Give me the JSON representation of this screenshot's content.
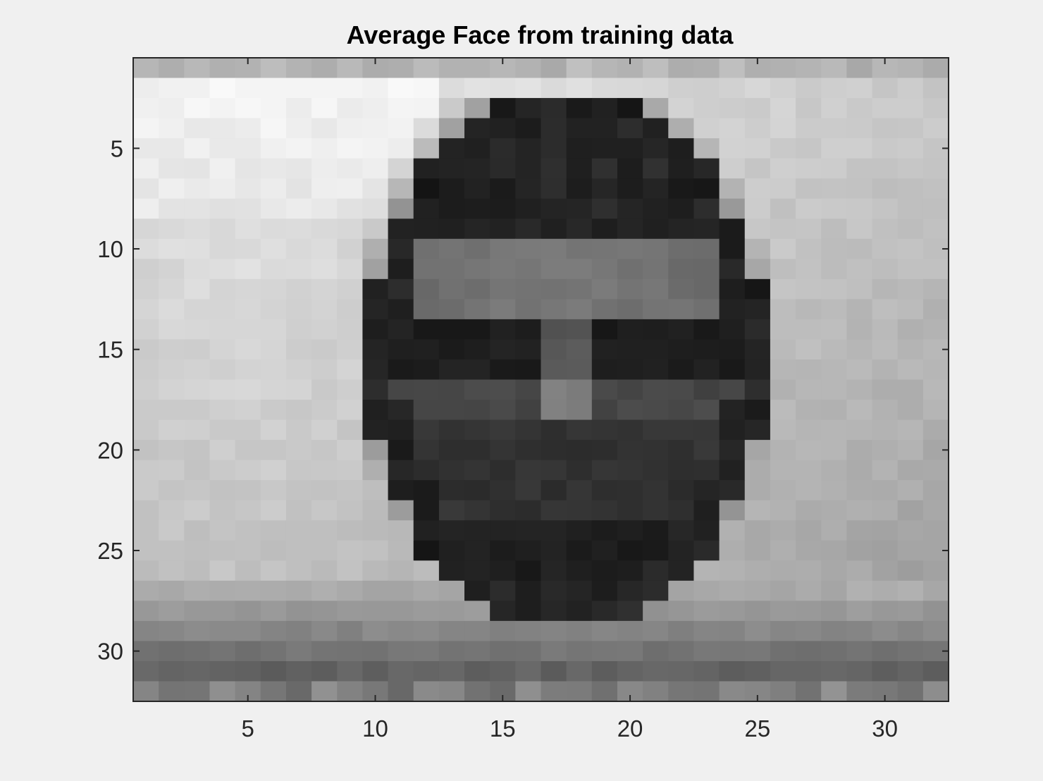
{
  "chart_data": {
    "type": "heatmap",
    "title": "Average Face from training data",
    "xlabel": "",
    "ylabel": "",
    "colormap": "gray",
    "xlim": [
      0.5,
      32.5
    ],
    "ylim": [
      0.5,
      32.5
    ],
    "y_direction": "reverse",
    "x_ticks": [
      "5",
      "10",
      "15",
      "20",
      "25",
      "30"
    ],
    "y_ticks": [
      "5",
      "10",
      "15",
      "20",
      "25",
      "30"
    ],
    "rows": 32,
    "cols": 32,
    "face": {
      "center_x": 17.5,
      "crown_y": 3.5,
      "head_radius": 7.5,
      "hair_top_y": 5.0,
      "forehead_y": 11.5,
      "eyes_y": 15.5,
      "nose_y": 18.0,
      "chin_y": 29.0,
      "neck_y": 32.0
    },
    "level_range": [
      0,
      255
    ]
  },
  "colors": {
    "figure_bg": "#f0f0f0",
    "axes_border": "#262626"
  }
}
